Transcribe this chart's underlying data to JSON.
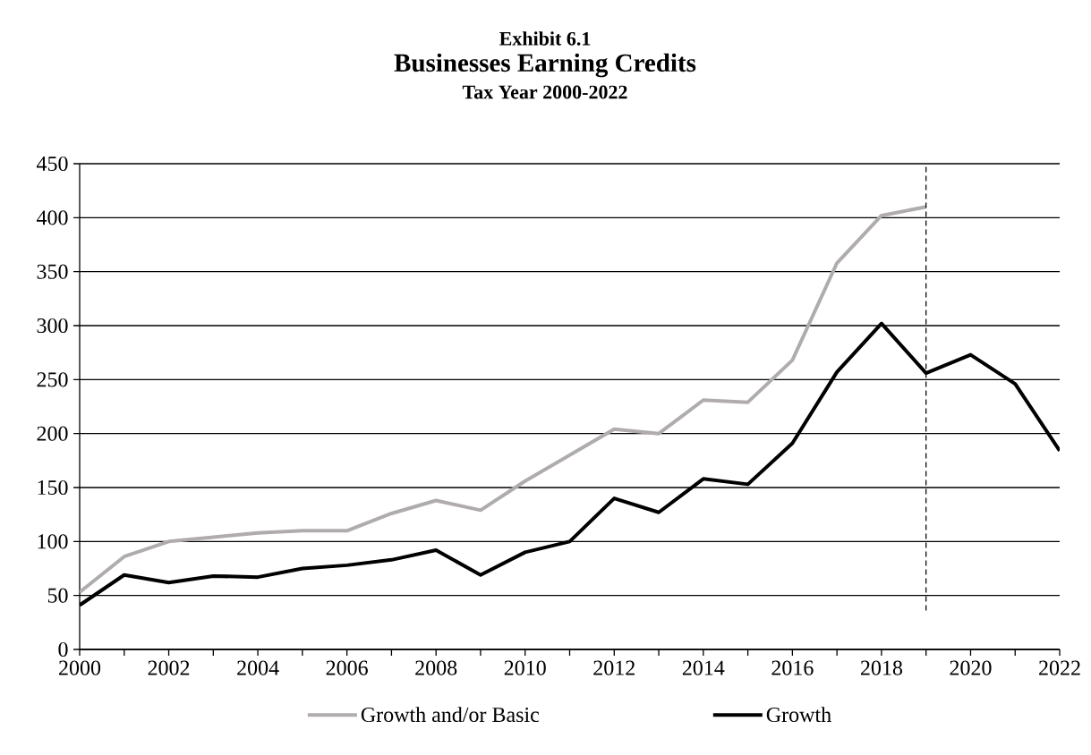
{
  "chart_data": {
    "type": "line",
    "title": "Businesses Earning Credits",
    "subtitle": "Tax Year 2000-2022",
    "annotations": [
      "Exhibit 6.1"
    ],
    "x": [
      2000,
      2001,
      2002,
      2003,
      2004,
      2005,
      2006,
      2007,
      2008,
      2009,
      2010,
      2011,
      2012,
      2013,
      2014,
      2015,
      2016,
      2017,
      2018,
      2019,
      2020,
      2021,
      2022
    ],
    "series": [
      {
        "name": "Growth and/or Basic",
        "color": "#b0acac",
        "values": [
          53,
          86,
          100,
          104,
          108,
          110,
          110,
          126,
          138,
          129,
          156,
          180,
          204,
          200,
          231,
          229,
          268,
          358,
          402,
          410,
          null,
          null,
          null
        ]
      },
      {
        "name": "Growth",
        "color": "#000000",
        "values": [
          41,
          69,
          62,
          68,
          67,
          75,
          78,
          83,
          92,
          69,
          90,
          100,
          140,
          127,
          158,
          153,
          191,
          257,
          302,
          256,
          273,
          246,
          184
        ]
      }
    ],
    "xlim": [
      2000,
      2022
    ],
    "xticks": [
      2000,
      {
        "value": 2001,
        "label": null
      },
      2002,
      {
        "value": 2003,
        "label": null
      },
      2004,
      {
        "value": 2005,
        "label": null
      },
      2006,
      {
        "value": 2007,
        "label": null
      },
      2008,
      {
        "value": 2009,
        "label": null
      },
      2010,
      {
        "value": 2011,
        "label": null
      },
      2012,
      {
        "value": 2013,
        "label": null
      },
      2014,
      {
        "value": 2015,
        "label": null
      },
      2016,
      {
        "value": 2017,
        "label": null
      },
      2018,
      {
        "value": 2019,
        "label": null
      },
      2020,
      {
        "value": 2021,
        "label": null
      },
      2022
    ],
    "ylim": [
      0,
      450
    ],
    "yticks": [
      0,
      50,
      100,
      150,
      200,
      250,
      300,
      350,
      400,
      450
    ],
    "grid": "y",
    "legend": "bottom",
    "marker": "none",
    "line_style": "solid",
    "ref_lines": [
      {
        "axis": "x",
        "value": 2019,
        "color": "#000000",
        "line_style": "dashed"
      }
    ]
  }
}
